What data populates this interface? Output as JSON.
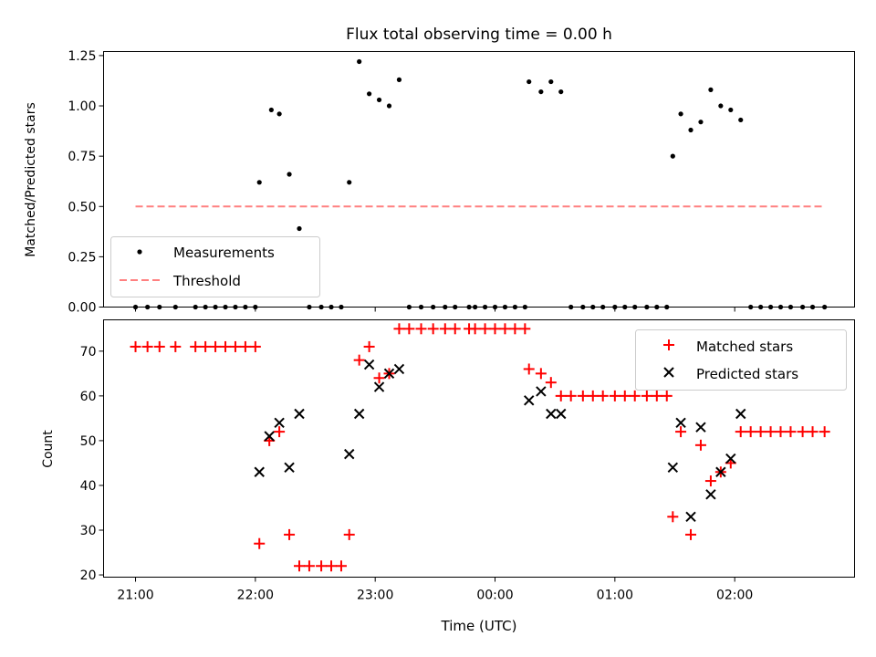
{
  "colors": {
    "measurement": "#000000",
    "threshold": "#ff8080",
    "matched": "#ff0000",
    "predicted": "#000000"
  },
  "chart_data": [
    {
      "type": "scatter",
      "title": "Flux total observing time = 0.00 h",
      "xlabel": "",
      "ylabel": "Matched/Predicted stars",
      "ylim": [
        0,
        1.27
      ],
      "yticks": [
        0.0,
        0.25,
        0.5,
        0.75,
        1.0,
        1.25
      ],
      "ytick_labels": [
        "0.00",
        "0.25",
        "0.50",
        "0.75",
        "1.00",
        "1.25"
      ],
      "xlim_minutes": [
        -16,
        360
      ],
      "legend": {
        "placement": "lower-left",
        "entries": [
          "Measurements",
          "Threshold"
        ]
      },
      "series": [
        {
          "name": "Measurements",
          "marker": "dot",
          "points": [
            [
              0,
              0
            ],
            [
              6,
              0
            ],
            [
              12,
              0
            ],
            [
              20,
              0
            ],
            [
              30,
              0
            ],
            [
              35,
              0
            ],
            [
              40,
              0
            ],
            [
              45,
              0
            ],
            [
              50,
              0
            ],
            [
              55,
              0
            ],
            [
              60,
              0
            ],
            [
              62,
              0.62
            ],
            [
              68,
              0.98
            ],
            [
              72,
              0.96
            ],
            [
              77,
              0.66
            ],
            [
              82,
              0.39
            ],
            [
              87,
              0
            ],
            [
              93,
              0
            ],
            [
              98,
              0
            ],
            [
              103,
              0
            ],
            [
              107,
              0.62
            ],
            [
              112,
              1.22
            ],
            [
              117,
              1.06
            ],
            [
              122,
              1.03
            ],
            [
              127,
              1.0
            ],
            [
              132,
              1.13
            ],
            [
              137,
              0
            ],
            [
              143,
              0
            ],
            [
              149,
              0
            ],
            [
              155,
              0
            ],
            [
              160,
              0
            ],
            [
              167,
              0
            ],
            [
              170,
              0
            ],
            [
              175,
              0
            ],
            [
              180,
              0
            ],
            [
              185,
              0
            ],
            [
              190,
              0
            ],
            [
              195,
              0
            ],
            [
              197,
              1.12
            ],
            [
              203,
              1.07
            ],
            [
              208,
              1.12
            ],
            [
              213,
              1.07
            ],
            [
              218,
              0
            ],
            [
              224,
              0
            ],
            [
              229,
              0
            ],
            [
              234,
              0
            ],
            [
              240,
              0
            ],
            [
              245,
              0
            ],
            [
              250,
              0
            ],
            [
              256,
              0
            ],
            [
              261,
              0
            ],
            [
              266,
              0
            ],
            [
              269,
              0.75
            ],
            [
              273,
              0.96
            ],
            [
              278,
              0.88
            ],
            [
              283,
              0.92
            ],
            [
              288,
              1.08
            ],
            [
              293,
              1.0
            ],
            [
              298,
              0.98
            ],
            [
              303,
              0.93
            ],
            [
              308,
              0
            ],
            [
              313,
              0
            ],
            [
              318,
              0
            ],
            [
              323,
              0
            ],
            [
              328,
              0
            ],
            [
              334,
              0
            ],
            [
              339,
              0
            ],
            [
              345,
              0
            ]
          ]
        },
        {
          "name": "Threshold",
          "type": "line",
          "style": "dashed",
          "x": [
            0,
            345
          ],
          "y": [
            0.5,
            0.5
          ]
        }
      ]
    },
    {
      "type": "scatter",
      "title": "",
      "xlabel": "Time (UTC)",
      "ylabel": "Count",
      "ylim": [
        19.5,
        77
      ],
      "yticks": [
        20,
        30,
        40,
        50,
        60,
        70
      ],
      "ytick_labels": [
        "20",
        "30",
        "40",
        "50",
        "60",
        "70"
      ],
      "xlim_minutes": [
        -16,
        360
      ],
      "xticks_minutes": [
        0,
        60,
        120,
        180,
        240,
        300
      ],
      "xtick_labels": [
        "21:00",
        "22:00",
        "23:00",
        "00:00",
        "01:00",
        "02:00"
      ],
      "legend": {
        "placement": "upper-right",
        "entries": [
          "Matched stars",
          "Predicted stars"
        ]
      },
      "series": [
        {
          "name": "Matched stars",
          "marker": "plus",
          "points": [
            [
              0,
              71
            ],
            [
              6,
              71
            ],
            [
              12,
              71
            ],
            [
              20,
              71
            ],
            [
              30,
              71
            ],
            [
              35,
              71
            ],
            [
              40,
              71
            ],
            [
              45,
              71
            ],
            [
              50,
              71
            ],
            [
              55,
              71
            ],
            [
              60,
              71
            ],
            [
              62,
              27
            ],
            [
              67,
              50
            ],
            [
              72,
              52
            ],
            [
              77,
              29
            ],
            [
              82,
              22
            ],
            [
              87,
              22
            ],
            [
              93,
              22
            ],
            [
              98,
              22
            ],
            [
              103,
              22
            ],
            [
              107,
              29
            ],
            [
              112,
              68
            ],
            [
              117,
              71
            ],
            [
              122,
              64
            ],
            [
              127,
              65
            ],
            [
              132,
              75
            ],
            [
              137,
              75
            ],
            [
              143,
              75
            ],
            [
              149,
              75
            ],
            [
              155,
              75
            ],
            [
              160,
              75
            ],
            [
              167,
              75
            ],
            [
              170,
              75
            ],
            [
              175,
              75
            ],
            [
              180,
              75
            ],
            [
              185,
              75
            ],
            [
              190,
              75
            ],
            [
              195,
              75
            ],
            [
              197,
              66
            ],
            [
              203,
              65
            ],
            [
              208,
              63
            ],
            [
              213,
              60
            ],
            [
              218,
              60
            ],
            [
              224,
              60
            ],
            [
              229,
              60
            ],
            [
              234,
              60
            ],
            [
              240,
              60
            ],
            [
              245,
              60
            ],
            [
              250,
              60
            ],
            [
              256,
              60
            ],
            [
              261,
              60
            ],
            [
              266,
              60
            ],
            [
              269,
              33
            ],
            [
              273,
              52
            ],
            [
              278,
              29
            ],
            [
              283,
              49
            ],
            [
              288,
              41
            ],
            [
              293,
              43
            ],
            [
              298,
              45
            ],
            [
              303,
              52
            ],
            [
              308,
              52
            ],
            [
              313,
              52
            ],
            [
              318,
              52
            ],
            [
              323,
              52
            ],
            [
              328,
              52
            ],
            [
              334,
              52
            ],
            [
              339,
              52
            ],
            [
              345,
              52
            ]
          ]
        },
        {
          "name": "Predicted stars",
          "marker": "x",
          "points": [
            [
              62,
              43
            ],
            [
              67,
              51
            ],
            [
              72,
              54
            ],
            [
              77,
              44
            ],
            [
              82,
              56
            ],
            [
              107,
              47
            ],
            [
              112,
              56
            ],
            [
              117,
              67
            ],
            [
              122,
              62
            ],
            [
              127,
              65
            ],
            [
              132,
              66
            ],
            [
              197,
              59
            ],
            [
              203,
              61
            ],
            [
              208,
              56
            ],
            [
              213,
              56
            ],
            [
              269,
              44
            ],
            [
              273,
              54
            ],
            [
              278,
              33
            ],
            [
              283,
              53
            ],
            [
              288,
              38
            ],
            [
              293,
              43
            ],
            [
              298,
              46
            ],
            [
              303,
              56
            ]
          ]
        }
      ]
    }
  ]
}
